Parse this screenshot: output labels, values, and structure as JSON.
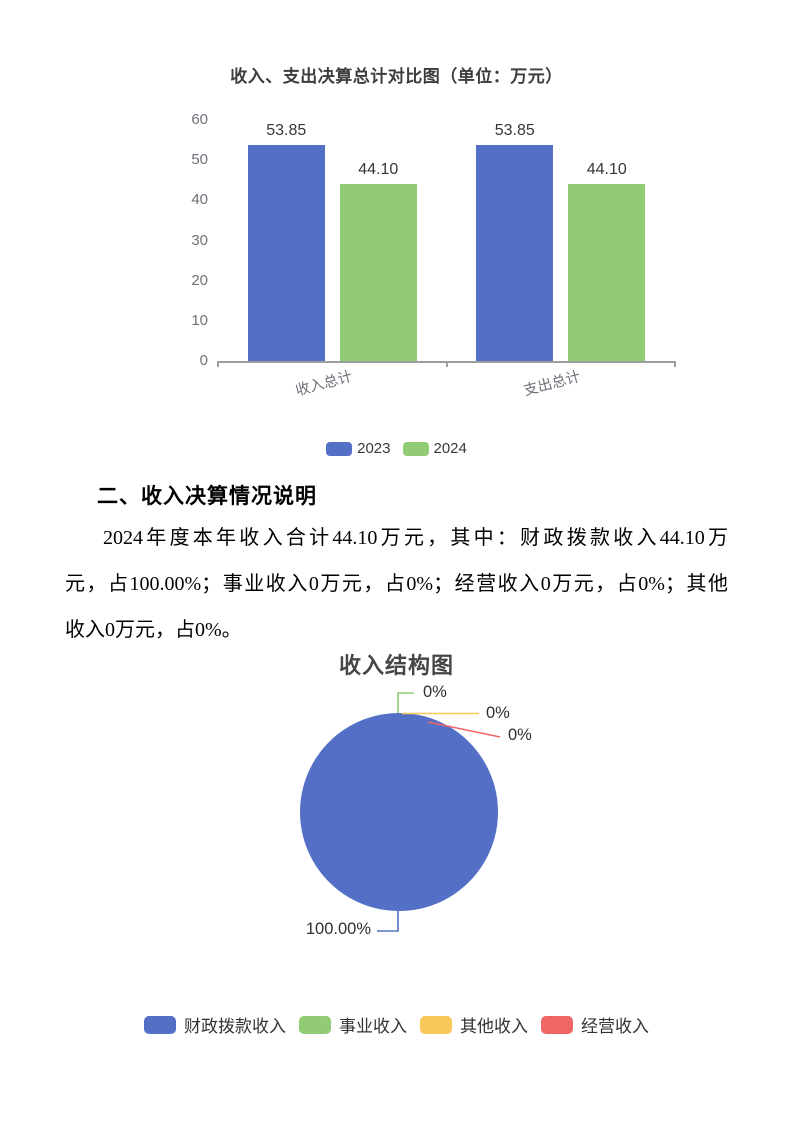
{
  "document": {
    "section_heading": "二、收入决算情况说明",
    "paragraph_lines": [
      "2024年度本年收入合计44.10万元，其中：财政拨款收入44.10万",
      "元，占100.00%；事业收入0万元，占0%；经营收入0万元，占0%；其他",
      "收入0万元，占0%。"
    ]
  },
  "chart_data": [
    {
      "type": "bar",
      "title": "收入、支出决算总计对比图（单位：万元）",
      "categories": [
        "收入总计",
        "支出总计"
      ],
      "series": [
        {
          "name": "2023",
          "color": "#5470C6",
          "values": [
            53.85,
            53.85
          ],
          "labels": [
            "53.85",
            "53.85"
          ]
        },
        {
          "name": "2024",
          "color": "#91CC75",
          "values": [
            44.1,
            44.1
          ],
          "labels": [
            "44.10",
            "44.10"
          ]
        }
      ],
      "ylim": [
        0,
        60
      ],
      "yticks": [
        0,
        10,
        20,
        30,
        40,
        50,
        60
      ],
      "grid": false,
      "legend_position": "bottom"
    },
    {
      "type": "pie",
      "title": "收入结构图",
      "slices": [
        {
          "label": "财政拨款收入",
          "pct": "100.00%",
          "value": 100.0,
          "color": "#5470C6"
        },
        {
          "label": "事业收入",
          "pct": "0%",
          "value": 0,
          "color": "#91CC75"
        },
        {
          "label": "其他收入",
          "pct": "0%",
          "value": 0,
          "color": "#FAC858"
        },
        {
          "label": "经营收入",
          "pct": "0%",
          "value": 0,
          "color": "#EE6666"
        }
      ],
      "legend_position": "bottom"
    }
  ],
  "colors": {
    "axis_text": "#6E7079",
    "axis_line": "#9E9E9E",
    "value_label": "#363636"
  }
}
